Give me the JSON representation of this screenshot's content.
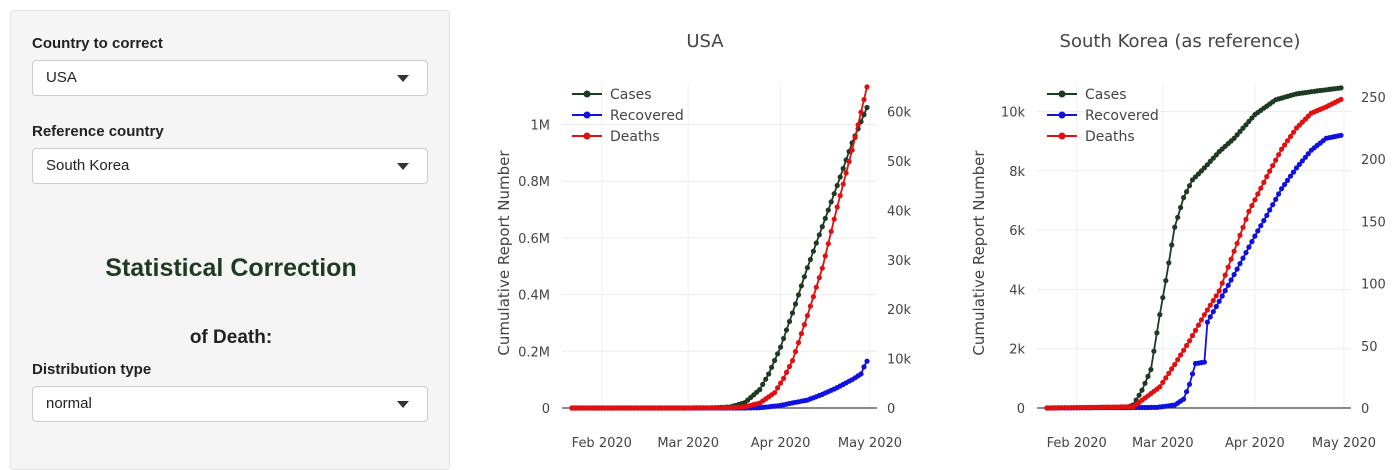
{
  "sidebar": {
    "country_label": "Country to correct",
    "country_value": "USA",
    "reference_label": "Reference country",
    "reference_value": "South Korea",
    "heading": "Statistical Correction",
    "subheading": "of Death:",
    "distribution_label": "Distribution type",
    "distribution_value": "normal"
  },
  "colors": {
    "cases": "#1f3a22",
    "recovered": "#1010e0",
    "deaths": "#e01010"
  },
  "chart_data": [
    {
      "type": "line",
      "title": "USA",
      "ylabel": "Cumulative Report Number",
      "x_range": [
        "2020-01-22",
        "2020-04-30"
      ],
      "x_ticks": [
        "Feb 2020",
        "Mar 2020",
        "Apr 2020",
        "May 2020"
      ],
      "ylim": [
        0,
        1150000
      ],
      "y_ticks": [
        "0",
        "0.2M",
        "0.4M",
        "0.6M",
        "0.8M",
        "1M"
      ],
      "y2lim": [
        0,
        66000
      ],
      "y2_ticks": [
        "0",
        "10k",
        "20k",
        "30k",
        "40k",
        "50k",
        "60k"
      ],
      "legend": "top-left",
      "series": [
        {
          "name": "Cases",
          "axis": "y",
          "color": "#1f3a22",
          "points": [
            [
              "2020-01-22",
              0
            ],
            [
              "2020-03-01",
              70
            ],
            [
              "2020-03-10",
              1000
            ],
            [
              "2020-03-15",
              3500
            ],
            [
              "2020-03-20",
              19000
            ],
            [
              "2020-03-25",
              65000
            ],
            [
              "2020-03-28",
              120000
            ],
            [
              "2020-04-01",
              215000
            ],
            [
              "2020-04-05",
              335000
            ],
            [
              "2020-04-10",
              495000
            ],
            [
              "2020-04-15",
              640000
            ],
            [
              "2020-04-20",
              785000
            ],
            [
              "2020-04-25",
              935000
            ],
            [
              "2020-04-30",
              1060000
            ]
          ]
        },
        {
          "name": "Recovered",
          "axis": "y",
          "color": "#1010e0",
          "points": [
            [
              "2020-01-22",
              0
            ],
            [
              "2020-03-20",
              0
            ],
            [
              "2020-03-25",
              900
            ],
            [
              "2020-04-01",
              9000
            ],
            [
              "2020-04-05",
              18000
            ],
            [
              "2020-04-10",
              28000
            ],
            [
              "2020-04-15",
              48000
            ],
            [
              "2020-04-20",
              72000
            ],
            [
              "2020-04-25",
              100000
            ],
            [
              "2020-04-28",
              120000
            ],
            [
              "2020-04-29",
              145000
            ],
            [
              "2020-04-30",
              165000
            ]
          ]
        },
        {
          "name": "Deaths",
          "axis": "y2",
          "color": "#e01010",
          "points": [
            [
              "2020-01-22",
              0
            ],
            [
              "2020-03-01",
              1
            ],
            [
              "2020-03-15",
              60
            ],
            [
              "2020-03-20",
              250
            ],
            [
              "2020-03-25",
              1000
            ],
            [
              "2020-03-30",
              3100
            ],
            [
              "2020-04-02",
              6000
            ],
            [
              "2020-04-05",
              9600
            ],
            [
              "2020-04-10",
              18700
            ],
            [
              "2020-04-15",
              28300
            ],
            [
              "2020-04-20",
              40700
            ],
            [
              "2020-04-25",
              52200
            ],
            [
              "2020-04-30",
              65000
            ]
          ]
        }
      ]
    },
    {
      "type": "line",
      "title": "South Korea (as reference)",
      "ylabel": "Cumulative Report Number",
      "x_range": [
        "2020-01-22",
        "2020-04-30"
      ],
      "x_ticks": [
        "Feb 2020",
        "Mar 2020",
        "Apr 2020",
        "May 2020"
      ],
      "ylim": [
        0,
        11000
      ],
      "y_ticks": [
        "0",
        "2k",
        "4k",
        "6k",
        "8k",
        "10k"
      ],
      "y2lim": [
        0,
        262
      ],
      "y2_ticks": [
        "0",
        "50",
        "100",
        "150",
        "200",
        "250"
      ],
      "legend": "top-left",
      "series": [
        {
          "name": "Cases",
          "axis": "y",
          "color": "#1f3a22",
          "points": [
            [
              "2020-01-22",
              0
            ],
            [
              "2020-02-18",
              30
            ],
            [
              "2020-02-20",
              100
            ],
            [
              "2020-02-23",
              600
            ],
            [
              "2020-02-26",
              1300
            ],
            [
              "2020-02-29",
              3150
            ],
            [
              "2020-03-02",
              4300
            ],
            [
              "2020-03-05",
              6100
            ],
            [
              "2020-03-08",
              7100
            ],
            [
              "2020-03-11",
              7700
            ],
            [
              "2020-03-15",
              8100
            ],
            [
              "2020-03-20",
              8650
            ],
            [
              "2020-03-25",
              9100
            ],
            [
              "2020-04-01",
              9900
            ],
            [
              "2020-04-08",
              10400
            ],
            [
              "2020-04-15",
              10600
            ],
            [
              "2020-04-22",
              10700
            ],
            [
              "2020-04-30",
              10800
            ]
          ]
        },
        {
          "name": "Recovered",
          "axis": "y",
          "color": "#1010e0",
          "points": [
            [
              "2020-01-22",
              0
            ],
            [
              "2020-02-28",
              20
            ],
            [
              "2020-03-05",
              100
            ],
            [
              "2020-03-08",
              300
            ],
            [
              "2020-03-10",
              800
            ],
            [
              "2020-03-12",
              1500
            ],
            [
              "2020-03-15",
              1550
            ],
            [
              "2020-03-16",
              2900
            ],
            [
              "2020-03-20",
              3600
            ],
            [
              "2020-03-25",
              4500
            ],
            [
              "2020-04-01",
              5800
            ],
            [
              "2020-04-05",
              6500
            ],
            [
              "2020-04-10",
              7400
            ],
            [
              "2020-04-15",
              8100
            ],
            [
              "2020-04-20",
              8700
            ],
            [
              "2020-04-25",
              9100
            ],
            [
              "2020-04-30",
              9200
            ]
          ]
        },
        {
          "name": "Deaths",
          "axis": "y2",
          "color": "#e01010",
          "points": [
            [
              "2020-01-22",
              0
            ],
            [
              "2020-02-20",
              1
            ],
            [
              "2020-02-24",
              8
            ],
            [
              "2020-02-29",
              17
            ],
            [
              "2020-03-05",
              35
            ],
            [
              "2020-03-10",
              54
            ],
            [
              "2020-03-15",
              75
            ],
            [
              "2020-03-20",
              94
            ],
            [
              "2020-03-25",
              126
            ],
            [
              "2020-03-30",
              158
            ],
            [
              "2020-04-05",
              186
            ],
            [
              "2020-04-10",
              208
            ],
            [
              "2020-04-15",
              225
            ],
            [
              "2020-04-20",
              237
            ],
            [
              "2020-04-25",
              242
            ],
            [
              "2020-04-30",
              248
            ]
          ]
        }
      ]
    }
  ]
}
